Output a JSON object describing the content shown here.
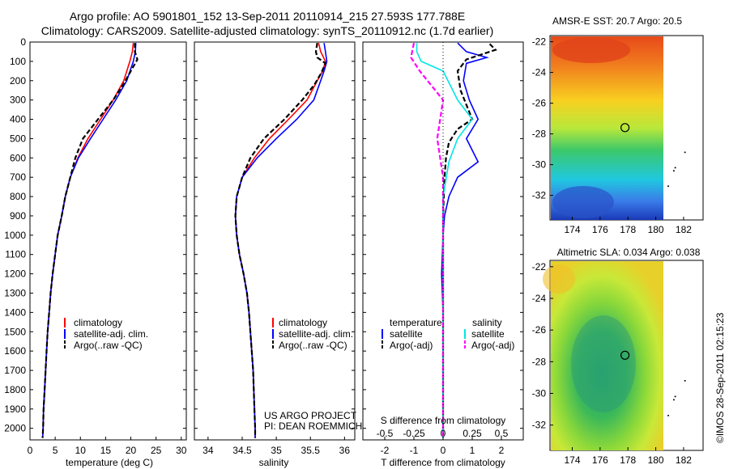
{
  "header": {
    "title1": "Argo profile: AO 5901801_152 13-Sep-2011 20110914_215 27.593S 177.788E",
    "title2": "Climatology: CARS2009. Satellite-adjusted climatology: synTS_20110912.nc (1.7d earlier)"
  },
  "colors": {
    "climatology": "#ff0000",
    "satellite": "#0000ff",
    "argo": "#000000",
    "sat_salinity": "#00e5e5",
    "argo_salinity": "#ff00ff"
  },
  "chart_data": [
    {
      "type": "line",
      "name": "temperature",
      "xlabel": "temperature (deg C)",
      "ylabel": "",
      "xlim": [
        0,
        31
      ],
      "ylim": [
        2060,
        0
      ],
      "grid": false,
      "xticks": [
        "0",
        "5",
        "10",
        "15",
        "20",
        "25",
        "30"
      ],
      "yticks": [
        "0",
        "100",
        "200",
        "300",
        "400",
        "500",
        "600",
        "700",
        "800",
        "900",
        "1000",
        "1100",
        "1200",
        "1300",
        "1400",
        "1500",
        "1600",
        "1700",
        "1800",
        "1900",
        "2000"
      ],
      "legend": [
        "climatology",
        "satellite-adj. clim.",
        "Argo(..raw -QC)"
      ],
      "series": [
        {
          "name": "climatology",
          "style": "solid",
          "color": "#ff0000",
          "points": [
            [
              20.5,
              5
            ],
            [
              20.3,
              50
            ],
            [
              19.8,
              100
            ],
            [
              18.6,
              200
            ],
            [
              16.5,
              300
            ],
            [
              14.0,
              400
            ],
            [
              11.5,
              500
            ],
            [
              9.5,
              600
            ],
            [
              8.0,
              700
            ],
            [
              7.0,
              800
            ],
            [
              6.3,
              900
            ],
            [
              5.5,
              1000
            ],
            [
              5.0,
              1100
            ],
            [
              4.5,
              1200
            ],
            [
              4.1,
              1300
            ],
            [
              3.8,
              1400
            ],
            [
              3.5,
              1500
            ],
            [
              3.3,
              1600
            ],
            [
              3.1,
              1700
            ],
            [
              2.9,
              1800
            ],
            [
              2.7,
              1900
            ],
            [
              2.6,
              2000
            ],
            [
              2.5,
              2050
            ]
          ]
        },
        {
          "name": "satellite-adj. clim.",
          "style": "solid",
          "color": "#0000ff",
          "points": [
            [
              21.0,
              5
            ],
            [
              20.9,
              50
            ],
            [
              20.5,
              100
            ],
            [
              19.2,
              200
            ],
            [
              17.0,
              300
            ],
            [
              14.5,
              400
            ],
            [
              12.0,
              500
            ],
            [
              9.6,
              600
            ],
            [
              8.0,
              700
            ],
            [
              7.0,
              800
            ],
            [
              6.3,
              900
            ],
            [
              5.5,
              1000
            ],
            [
              5.0,
              1100
            ],
            [
              4.5,
              1200
            ],
            [
              4.1,
              1300
            ],
            [
              3.8,
              1400
            ],
            [
              3.5,
              1500
            ],
            [
              3.3,
              1600
            ],
            [
              3.1,
              1700
            ],
            [
              2.9,
              1800
            ],
            [
              2.7,
              1900
            ],
            [
              2.6,
              2000
            ],
            [
              2.5,
              2050
            ]
          ]
        },
        {
          "name": "Argo(..raw -QC)",
          "style": "dashed",
          "color": "#000000",
          "points": [
            [
              20.8,
              5
            ],
            [
              20.8,
              50
            ],
            [
              21.3,
              90
            ],
            [
              20.0,
              150
            ],
            [
              18.5,
              220
            ],
            [
              16.5,
              300
            ],
            [
              13.5,
              400
            ],
            [
              10.5,
              500
            ],
            [
              9.0,
              600
            ],
            [
              8.0,
              700
            ],
            [
              7.0,
              800
            ],
            [
              6.3,
              900
            ],
            [
              5.5,
              1000
            ],
            [
              5.0,
              1100
            ],
            [
              4.5,
              1200
            ],
            [
              4.1,
              1300
            ],
            [
              3.8,
              1400
            ],
            [
              3.5,
              1500
            ],
            [
              3.3,
              1600
            ],
            [
              3.1,
              1700
            ],
            [
              2.9,
              1800
            ],
            [
              2.7,
              1900
            ],
            [
              2.6,
              2000
            ],
            [
              2.5,
              2050
            ]
          ]
        }
      ]
    },
    {
      "type": "line",
      "name": "salinity",
      "xlabel": "salinity",
      "ylabel": "",
      "xlim": [
        33.8,
        36.15
      ],
      "ylim": [
        2060,
        0
      ],
      "grid": false,
      "xticks": [
        "34",
        "34.5",
        "35",
        "35.5",
        "36"
      ],
      "legend": [
        "climatology",
        "satellite-adj. clim.",
        "Argo(..raw -QC)"
      ],
      "annotation": [
        "US ARGO PROJECT",
        "PI: DEAN ROEMMICH"
      ],
      "series": [
        {
          "name": "climatology",
          "style": "solid",
          "color": "#ff0000",
          "points": [
            [
              35.62,
              5
            ],
            [
              35.65,
              50
            ],
            [
              35.72,
              100
            ],
            [
              35.68,
              150
            ],
            [
              35.6,
              200
            ],
            [
              35.45,
              300
            ],
            [
              35.18,
              400
            ],
            [
              34.9,
              500
            ],
            [
              34.68,
              600
            ],
            [
              34.5,
              700
            ],
            [
              34.42,
              800
            ],
            [
              34.4,
              900
            ],
            [
              34.42,
              1000
            ],
            [
              34.46,
              1100
            ],
            [
              34.52,
              1200
            ],
            [
              34.57,
              1300
            ],
            [
              34.6,
              1400
            ],
            [
              34.62,
              1500
            ],
            [
              34.64,
              1600
            ],
            [
              34.66,
              1700
            ],
            [
              34.67,
              1800
            ],
            [
              34.68,
              1900
            ],
            [
              34.69,
              2000
            ],
            [
              34.69,
              2050
            ]
          ]
        },
        {
          "name": "satellite-adj. clim.",
          "style": "solid",
          "color": "#0000ff",
          "points": [
            [
              35.7,
              5
            ],
            [
              35.72,
              50
            ],
            [
              35.74,
              100
            ],
            [
              35.7,
              150
            ],
            [
              35.65,
              200
            ],
            [
              35.55,
              300
            ],
            [
              35.3,
              400
            ],
            [
              35.0,
              500
            ],
            [
              34.72,
              600
            ],
            [
              34.5,
              700
            ],
            [
              34.42,
              800
            ],
            [
              34.4,
              900
            ],
            [
              34.42,
              1000
            ],
            [
              34.46,
              1100
            ],
            [
              34.52,
              1200
            ],
            [
              34.57,
              1300
            ],
            [
              34.6,
              1400
            ],
            [
              34.62,
              1500
            ],
            [
              34.64,
              1600
            ],
            [
              34.66,
              1700
            ],
            [
              34.67,
              1800
            ],
            [
              34.68,
              1900
            ],
            [
              34.69,
              2000
            ],
            [
              34.69,
              2050
            ]
          ]
        },
        {
          "name": "Argo(..raw -QC)",
          "style": "dashed",
          "color": "#000000",
          "points": [
            [
              35.6,
              5
            ],
            [
              35.58,
              50
            ],
            [
              35.6,
              80
            ],
            [
              35.72,
              110
            ],
            [
              35.66,
              160
            ],
            [
              35.56,
              220
            ],
            [
              35.38,
              300
            ],
            [
              35.12,
              400
            ],
            [
              34.82,
              500
            ],
            [
              34.62,
              600
            ],
            [
              34.5,
              700
            ],
            [
              34.42,
              800
            ],
            [
              34.4,
              900
            ],
            [
              34.42,
              1000
            ],
            [
              34.46,
              1100
            ],
            [
              34.52,
              1200
            ],
            [
              34.57,
              1300
            ],
            [
              34.6,
              1400
            ],
            [
              34.62,
              1500
            ],
            [
              34.64,
              1600
            ],
            [
              34.66,
              1700
            ],
            [
              34.67,
              1800
            ],
            [
              34.68,
              1900
            ],
            [
              34.69,
              2000
            ],
            [
              34.69,
              2050
            ]
          ]
        }
      ]
    },
    {
      "type": "line",
      "name": "difference",
      "xlabel": "T difference from climatology",
      "xlabel_top": "S difference from climatology",
      "xlim": [
        -2.75,
        2.75
      ],
      "ylim": [
        2060,
        0
      ],
      "grid": false,
      "xticks": [
        "-2",
        "-1",
        "0",
        "1",
        "2"
      ],
      "xticks_s": [
        "-0.5",
        "-0.25",
        "0",
        "0.25",
        "0.5"
      ],
      "legend_titles": [
        "temperature",
        "salinity"
      ],
      "legend_t": [
        "satellite",
        "Argo(-adj)"
      ],
      "legend_s": [
        "satellite",
        "Argo(-adj)"
      ],
      "series": [
        {
          "name": "satellite",
          "group": "temperature",
          "style": "solid",
          "color": "#0000ff",
          "points": [
            [
              0.5,
              5
            ],
            [
              0.8,
              50
            ],
            [
              1.5,
              80
            ],
            [
              0.8,
              110
            ],
            [
              0.7,
              200
            ],
            [
              0.9,
              300
            ],
            [
              1.2,
              400
            ],
            [
              0.8,
              500
            ],
            [
              1.2,
              620
            ],
            [
              0.5,
              700
            ],
            [
              0.2,
              800
            ],
            [
              0.05,
              900
            ],
            [
              0.0,
              1000
            ],
            [
              -0.05,
              1200
            ],
            [
              0.0,
              1400
            ],
            [
              0.0,
              1600
            ],
            [
              0.0,
              2050
            ]
          ]
        },
        {
          "name": "Argo(-adj)",
          "group": "temperature",
          "style": "dashed",
          "color": "#000000",
          "points": [
            [
              1.6,
              10
            ],
            [
              1.8,
              40
            ],
            [
              0.8,
              90
            ],
            [
              0.5,
              150
            ],
            [
              0.6,
              250
            ],
            [
              1.0,
              400
            ],
            [
              0.5,
              450
            ],
            [
              0.2,
              520
            ],
            [
              0.1,
              600
            ],
            [
              0.05,
              700
            ],
            [
              0.0,
              900
            ],
            [
              0.0,
              1100
            ],
            [
              0.0,
              2050
            ]
          ]
        },
        {
          "name": "satellite",
          "group": "salinity",
          "style": "solid",
          "color": "#00e5e5",
          "points": [
            [
              -0.9,
              5
            ],
            [
              -0.9,
              50
            ],
            [
              -0.75,
              100
            ],
            [
              0.0,
              150
            ],
            [
              0.5,
              300
            ],
            [
              1.0,
              400
            ],
            [
              0.5,
              500
            ],
            [
              0.2,
              620
            ],
            [
              0.0,
              800
            ],
            [
              0.0,
              1000
            ],
            [
              0.0,
              1400
            ],
            [
              0.0,
              2050
            ]
          ]
        },
        {
          "name": "Argo(-adj)",
          "group": "salinity",
          "style": "dashed",
          "color": "#ff00ff",
          "points": [
            [
              -1.0,
              5
            ],
            [
              -1.1,
              80
            ],
            [
              -0.8,
              150
            ],
            [
              0.0,
              300
            ],
            [
              -0.2,
              500
            ],
            [
              -0.1,
              600
            ],
            [
              0.0,
              700
            ],
            [
              0.0,
              1000
            ],
            [
              0.0,
              2050
            ]
          ]
        }
      ]
    },
    {
      "type": "heatmap",
      "name": "sst_map",
      "title": "AMSR-E SST: 20.7 Argo: 20.5",
      "xticks": [
        "174",
        "176",
        "178",
        "180",
        "182"
      ],
      "yticks": [
        "-22",
        "-24",
        "-26",
        "-28",
        "-30",
        "-32"
      ],
      "xlim": [
        172.4,
        183.4
      ],
      "ylim": [
        -33.6,
        -21.6
      ],
      "marker": {
        "lon": 177.79,
        "lat": -27.59
      }
    },
    {
      "type": "heatmap",
      "name": "sla_map",
      "title": "Altimetric SLA: 0.034 Argo: 0.038",
      "xticks": [
        "174",
        "176",
        "178",
        "180",
        "182"
      ],
      "yticks": [
        "-22",
        "-24",
        "-26",
        "-28",
        "-30",
        "-32"
      ],
      "xlim": [
        172.4,
        183.4
      ],
      "ylim": [
        -33.6,
        -21.6
      ],
      "marker": {
        "lon": 177.79,
        "lat": -27.59
      }
    }
  ],
  "footer": {
    "stamp": "©IMOS 28-Sep-2011 02:15:23"
  }
}
